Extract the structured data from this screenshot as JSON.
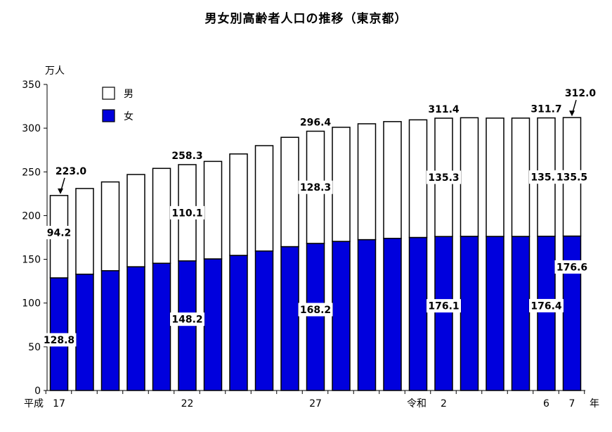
{
  "chart_data": {
    "type": "bar",
    "stacked": true,
    "title": "男女別高齢者人口の推移（東京都）",
    "y_unit": "万人",
    "x_unit": "年",
    "ylim": [
      0,
      350
    ],
    "yticks": [
      0,
      50,
      100,
      150,
      200,
      250,
      300,
      350
    ],
    "x_tick_labels": [
      "平成",
      "17",
      "22",
      "27",
      "令和",
      "2",
      "6",
      "7"
    ],
    "legend": {
      "placement": "top-left",
      "entries": [
        "男",
        "女"
      ]
    },
    "colors": {
      "male": "#ffffff",
      "female": "#0000dd",
      "outline": "#000000"
    },
    "series": [
      {
        "name": "女",
        "values": [
          128.8,
          133.0,
          137.0,
          141.5,
          145.5,
          148.2,
          150.5,
          154.5,
          159.5,
          164.5,
          168.2,
          170.5,
          172.5,
          174.0,
          175.0,
          176.1,
          176.3,
          176.2,
          176.2,
          176.4,
          176.6
        ]
      },
      {
        "name": "男",
        "values": [
          94.2,
          98.0,
          101.5,
          105.5,
          108.5,
          110.1,
          111.5,
          116.0,
          120.5,
          125.0,
          128.3,
          130.5,
          132.5,
          133.5,
          134.5,
          135.3,
          135.6,
          135.3,
          135.3,
          135.3,
          135.5
        ]
      }
    ],
    "totals": [
      223.0,
      231.0,
      238.5,
      247.0,
      254.0,
      258.3,
      262.0,
      270.5,
      280.0,
      289.5,
      296.4,
      301.0,
      305.0,
      307.5,
      309.5,
      311.4,
      311.9,
      311.5,
      311.5,
      311.7,
      312.0
    ],
    "annotations": {
      "totals": [
        {
          "index": 0,
          "text": "223.0",
          "arrow": true
        },
        {
          "index": 5,
          "text": "258.3"
        },
        {
          "index": 10,
          "text": "296.4"
        },
        {
          "index": 15,
          "text": "311.4"
        },
        {
          "index": 19,
          "text": "311.7"
        },
        {
          "index": 20,
          "text": "312.0",
          "arrow": true
        }
      ],
      "male": [
        {
          "index": 0,
          "text": "94.2"
        },
        {
          "index": 5,
          "text": "110.1"
        },
        {
          "index": 10,
          "text": "128.3"
        },
        {
          "index": 15,
          "text": "135.3"
        },
        {
          "index": 19,
          "text": "135.3"
        },
        {
          "index": 20,
          "text": "135.5"
        }
      ],
      "female": [
        {
          "index": 0,
          "text": "128.8"
        },
        {
          "index": 5,
          "text": "148.2"
        },
        {
          "index": 10,
          "text": "168.2"
        },
        {
          "index": 15,
          "text": "176.1"
        },
        {
          "index": 19,
          "text": "176.4"
        },
        {
          "index": 20,
          "text": "176.6"
        }
      ]
    }
  }
}
